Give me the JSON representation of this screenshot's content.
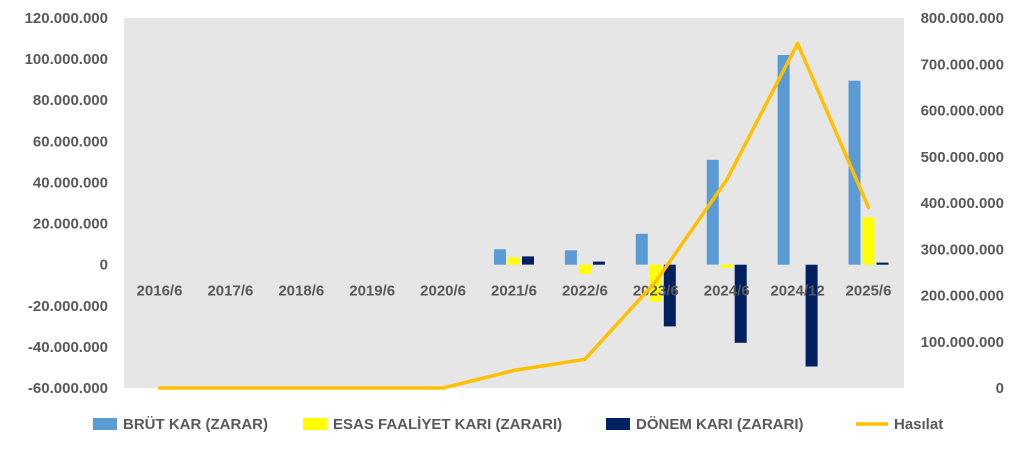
{
  "chart_data": {
    "type": "bar",
    "categories": [
      "2016/6",
      "2017/6",
      "2018/6",
      "2019/6",
      "2020/6",
      "2021/6",
      "2022/6",
      "2023/6",
      "2024/6",
      "2024/12",
      "2025/6"
    ],
    "series": [
      {
        "name": "BRÜT KAR (ZARAR)",
        "type": "bar",
        "axis": "left",
        "color": "#5B9BD5",
        "values": [
          0,
          0,
          0,
          0,
          0,
          7500000,
          7000000,
          15000000,
          51000000,
          102000000,
          89500000
        ]
      },
      {
        "name": "ESAS FAALİYET KARI (ZARARI)",
        "type": "bar",
        "axis": "left",
        "color": "#FFFF00",
        "values": [
          0,
          0,
          0,
          0,
          0,
          3500000,
          -4500000,
          -18000000,
          -1500000,
          0,
          23000000
        ]
      },
      {
        "name": "DÖNEM KARI (ZARARI)",
        "type": "bar",
        "axis": "left",
        "color": "#002060",
        "values": [
          0,
          0,
          0,
          0,
          0,
          4000000,
          1500000,
          -30000000,
          -38000000,
          -49500000,
          1000000
        ]
      },
      {
        "name": "Hasılat",
        "type": "line",
        "axis": "right",
        "color": "#FFC000",
        "values": [
          0,
          0,
          0,
          0,
          0,
          38000000,
          62000000,
          230000000,
          450000000,
          745000000,
          390000000
        ]
      }
    ],
    "left_axis": {
      "min": -60000000,
      "max": 120000000,
      "step": 20000000,
      "tick_labels": [
        "-60.000.000",
        "-40.000.000",
        "-20.000.000",
        "0",
        "20.000.000",
        "40.000.000",
        "60.000.000",
        "80.000.000",
        "100.000.000",
        "120.000.000"
      ]
    },
    "right_axis": {
      "min": 0,
      "max": 800000000,
      "step": 100000000,
      "tick_labels": [
        "0",
        "100.000.000",
        "200.000.000",
        "300.000.000",
        "400.000.000",
        "500.000.000",
        "600.000.000",
        "700.000.000",
        "800.000.000"
      ]
    },
    "title": "",
    "legend": "bottom",
    "grid": false,
    "plot_background": "#E7E6E6"
  }
}
